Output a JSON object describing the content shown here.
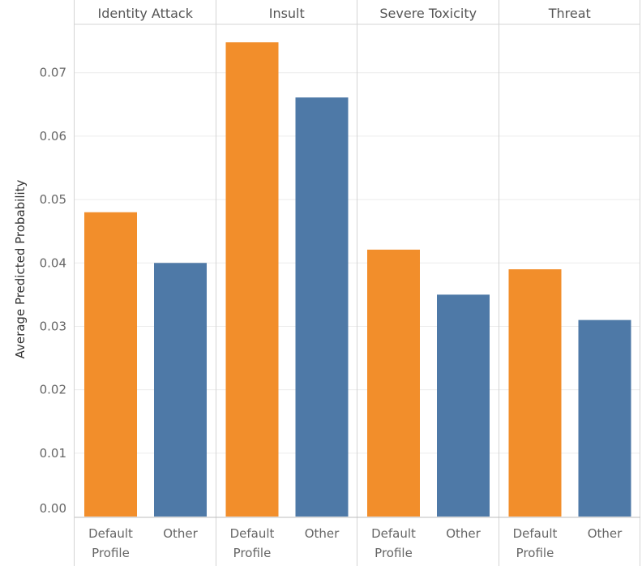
{
  "chart_data": {
    "type": "bar",
    "ylabel": "Average Predicted Probability",
    "ylim": [
      0,
      0.077
    ],
    "yticks": [
      "0.00",
      "0.01",
      "0.02",
      "0.03",
      "0.04",
      "0.05",
      "0.06",
      "0.07"
    ],
    "grid": true,
    "panels": [
      {
        "title": "Identity Attack",
        "categories": [
          "Default Profile",
          "Other"
        ],
        "values": [
          0.048,
          0.04
        ]
      },
      {
        "title": "Insult",
        "categories": [
          "Default Profile",
          "Other"
        ],
        "values": [
          0.0748,
          0.0661
        ]
      },
      {
        "title": "Severe Toxicity",
        "categories": [
          "Default Profile",
          "Other"
        ],
        "values": [
          0.0421,
          0.035
        ]
      },
      {
        "title": "Threat",
        "categories": [
          "Default Profile",
          "Other"
        ],
        "values": [
          0.039,
          0.031
        ]
      }
    ],
    "category_label_lines": [
      [
        "Default",
        "Profile"
      ],
      [
        "Other"
      ]
    ],
    "colors": {
      "Default Profile": "#F28E2B",
      "Other": "#4E79A7"
    }
  }
}
